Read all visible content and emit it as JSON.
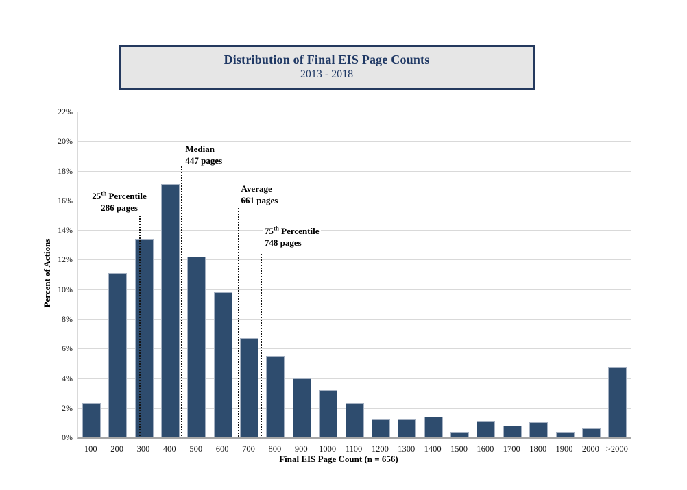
{
  "chart_data": {
    "type": "bar",
    "title": "Distribution of Final EIS Page Counts",
    "subtitle": "2013 - 2018",
    "xlabel": "Final EIS Page Count (n = 656)",
    "ylabel": "Percent of Actions",
    "categories": [
      "100",
      "200",
      "300",
      "400",
      "500",
      "600",
      "700",
      "800",
      "900",
      "1000",
      "1100",
      "1200",
      "1300",
      "1400",
      "1500",
      "1600",
      "1700",
      "1800",
      "1900",
      "2000",
      ">2000"
    ],
    "values": [
      2.3,
      11.1,
      13.4,
      17.1,
      12.2,
      9.8,
      6.7,
      5.5,
      4.0,
      3.2,
      2.3,
      1.25,
      1.25,
      1.4,
      0.35,
      1.1,
      0.8,
      1.0,
      0.35,
      0.6,
      4.7
    ],
    "value_unit": "percent of actions",
    "ylim": [
      0,
      22
    ],
    "y_tick_values": [
      0,
      2,
      4,
      6,
      8,
      10,
      12,
      14,
      16,
      18,
      20,
      22
    ],
    "y_tick_labels": [
      "0%",
      "2%",
      "4%",
      "6%",
      "8%",
      "10%",
      "12%",
      "14%",
      "16%",
      "18%",
      "20%",
      "22%"
    ],
    "grid": "horizontal gridlines every 2%",
    "legend": "none",
    "annotations": [
      {
        "label": "25th Percentile",
        "value_label": "286 pages",
        "pages": 286
      },
      {
        "label": "Median",
        "value_label": "447 pages",
        "pages": 447
      },
      {
        "label": "Average",
        "value_label": "661 pages",
        "pages": 661
      },
      {
        "label": "75th Percentile",
        "value_label": "748 pages",
        "pages": 748
      }
    ],
    "colors": {
      "bar_fill": "#2E4C6E",
      "bar_border": "#A5B1C2",
      "gridline": "#D9D9D9",
      "axis_line": "#A6A6A6",
      "title_text": "#1F3864",
      "title_box_bg": "#E6E6E6",
      "title_box_border": "#24395E",
      "annotation_line": "#141414",
      "annotation_text": "#000000"
    }
  }
}
